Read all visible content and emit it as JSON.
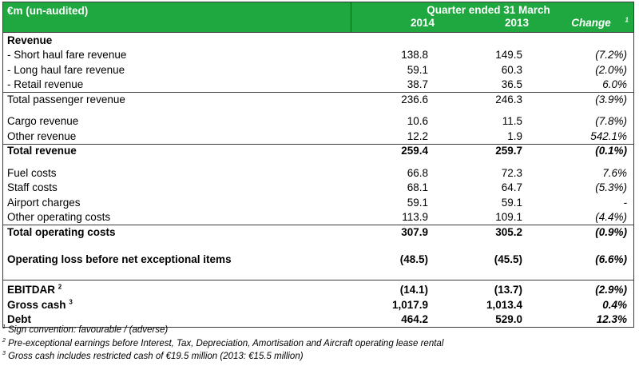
{
  "header": {
    "title": "€m (un-audited)",
    "period": "Quarter ended 31 March",
    "year1": "2014",
    "year2": "2013",
    "change_label": "Change",
    "change_note": "1"
  },
  "sections": {
    "revenue_heading": "Revenue",
    "short_haul": {
      "label": " - Short haul fare revenue",
      "y2014": "138.8",
      "y2013": "149.5",
      "change": "(7.2%)"
    },
    "long_haul": {
      "label": " - Long haul fare revenue",
      "y2014": "59.1",
      "y2013": "60.3",
      "change": "(2.0%)"
    },
    "retail": {
      "label": " - Retail revenue",
      "y2014": "38.7",
      "y2013": "36.5",
      "change": "6.0%"
    },
    "total_passenger": {
      "label": "Total passenger revenue",
      "y2014": "236.6",
      "y2013": "246.3",
      "change": "(3.9%)"
    },
    "cargo": {
      "label": "Cargo revenue",
      "y2014": "10.6",
      "y2013": "11.5",
      "change": "(7.8%)"
    },
    "other_revenue": {
      "label": "Other revenue",
      "y2014": "12.2",
      "y2013": "1.9",
      "change": "542.1%"
    },
    "total_revenue": {
      "label": "Total revenue",
      "y2014": "259.4",
      "y2013": "259.7",
      "change": "(0.1%)"
    },
    "fuel": {
      "label": "Fuel costs",
      "y2014": "66.8",
      "y2013": "72.3",
      "change": "7.6%"
    },
    "staff": {
      "label": "Staff costs",
      "y2014": "68.1",
      "y2013": "64.7",
      "change": "(5.3%)"
    },
    "airport": {
      "label": "Airport charges",
      "y2014": "59.1",
      "y2013": "59.1",
      "change": "-"
    },
    "other_costs": {
      "label": "Other operating costs",
      "y2014": "113.9",
      "y2013": "109.1",
      "change": "(4.4%)"
    },
    "total_costs": {
      "label": "Total operating costs",
      "y2014": "307.9",
      "y2013": "305.2",
      "change": "(0.9%)"
    },
    "operating_loss": {
      "label": "Operating loss before net exceptional items",
      "y2014": "(48.5)",
      "y2013": "(45.5)",
      "change": "(6.6%)"
    },
    "ebitdar": {
      "label": "EBITDAR",
      "note": "2",
      "y2014": "(14.1)",
      "y2013": "(13.7)",
      "change": "(2.9%)"
    },
    "gross_cash": {
      "label": "Gross cash",
      "note": "3",
      "y2014": "1,017.9",
      "y2013": "1,013.4",
      "change": "0.4%"
    },
    "debt": {
      "label": "Debt",
      "y2014": "464.2",
      "y2013": "529.0",
      "change": "12.3%"
    }
  },
  "footnotes": {
    "n1_mark": "1",
    "n1": " Sign convention: favourable / (adverse)",
    "n2_mark": "2",
    "n2": " Pre-exceptional earnings before Interest, Tax, Depreciation, Amortisation and Aircraft operating lease rental",
    "n3_mark": "3",
    "n3": " Gross cash includes restricted cash of €19.5 million (2013: €15.5 million)"
  },
  "colors": {
    "header_bg": "#1ea83f",
    "header_text": "#ffffff"
  }
}
